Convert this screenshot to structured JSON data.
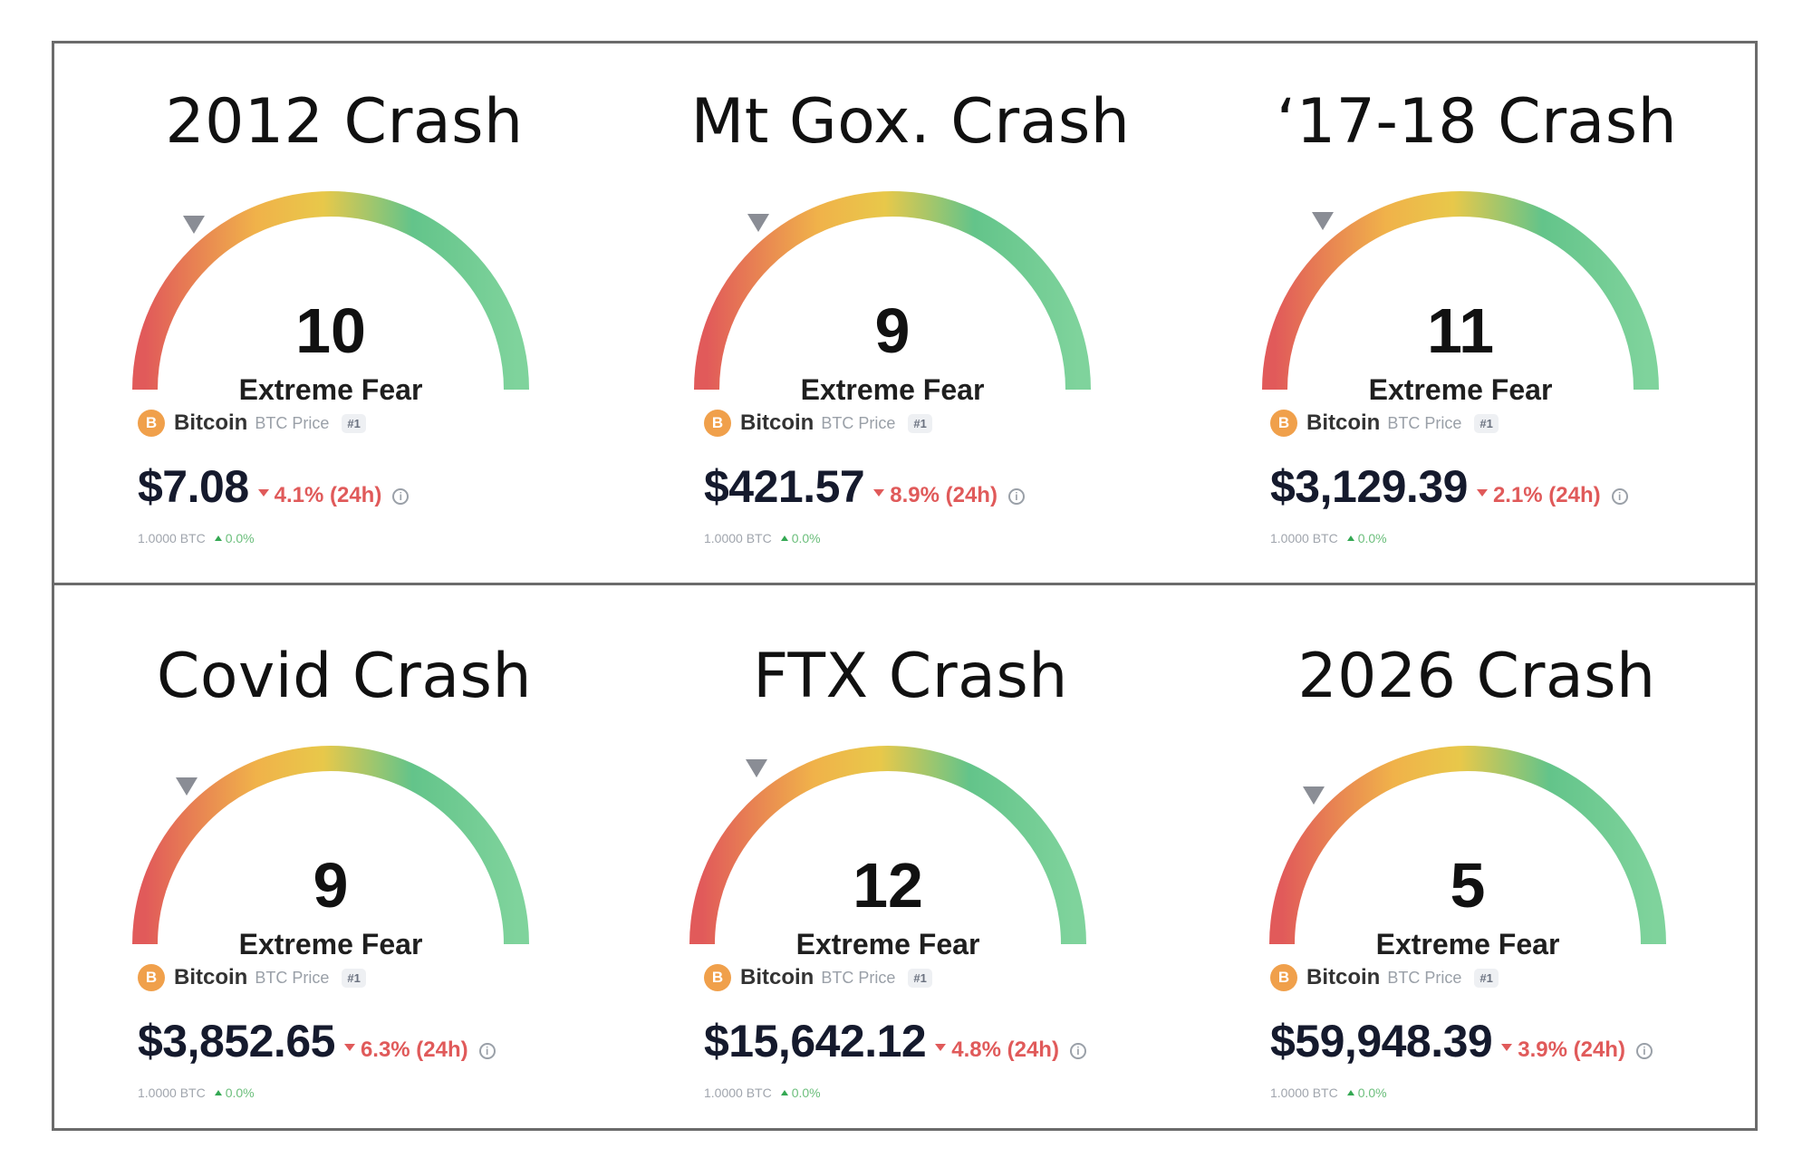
{
  "panels": [
    {
      "title": "2012 Crash",
      "score": "10",
      "label": "Extreme Fear",
      "coin": "Bitcoin",
      "coin_sub": "BTC Price",
      "rank": "#1",
      "price": "$7.08",
      "change": "4.1% (24h)",
      "btc_amount": "1.0000 BTC",
      "btc_change": "0.0%"
    },
    {
      "title": "Mt Gox. Crash",
      "score": "9",
      "label": "Extreme Fear",
      "coin": "Bitcoin",
      "coin_sub": "BTC Price",
      "rank": "#1",
      "price": "$421.57",
      "change": "8.9% (24h)",
      "btc_amount": "1.0000 BTC",
      "btc_change": "0.0%"
    },
    {
      "title": "‘17-18 Crash",
      "score": "11",
      "label": "Extreme Fear",
      "coin": "Bitcoin",
      "coin_sub": "BTC Price",
      "rank": "#1",
      "price": "$3,129.39",
      "change": "2.1% (24h)",
      "btc_amount": "1.0000 BTC",
      "btc_change": "0.0%"
    },
    {
      "title": "Covid Crash",
      "score": "9",
      "label": "Extreme Fear",
      "coin": "Bitcoin",
      "coin_sub": "BTC Price",
      "rank": "#1",
      "price": "$3,852.65",
      "change": "6.3% (24h)",
      "btc_amount": "1.0000 BTC",
      "btc_change": "0.0%"
    },
    {
      "title": "FTX Crash",
      "score": "12",
      "label": "Extreme Fear",
      "coin": "Bitcoin",
      "coin_sub": "BTC Price",
      "rank": "#1",
      "price": "$15,642.12",
      "change": "4.8% (24h)",
      "btc_amount": "1.0000 BTC",
      "btc_change": "0.0%"
    },
    {
      "title": "2026 Crash",
      "score": "5",
      "label": "Extreme Fear",
      "coin": "Bitcoin",
      "coin_sub": "BTC Price",
      "rank": "#1",
      "price": "$59,948.39",
      "change": "3.9% (24h)",
      "btc_amount": "1.0000 BTC",
      "btc_change": "0.0%"
    }
  ],
  "icons": {
    "coin": "bitcoin-icon",
    "down": "caret-down-icon",
    "up": "caret-up-icon",
    "info": "info-icon",
    "pointer": "gauge-pointer-icon"
  },
  "gauge_colors": [
    "#e15a5a",
    "#f0b24a",
    "#e8c84a",
    "#63c48a",
    "#7fd39c"
  ],
  "accent": {
    "negative": "#e05a5a",
    "positive": "#34a853"
  }
}
